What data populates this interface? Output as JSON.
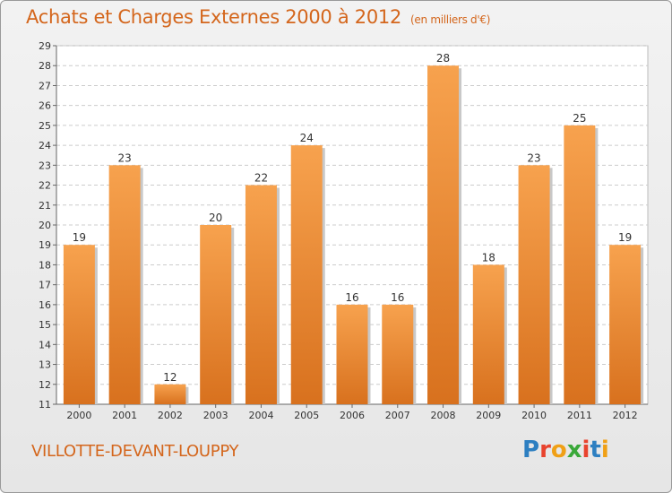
{
  "page": {
    "title": "Achats et Charges Externes 2000 à 2012",
    "unit": "(en milliers d'€)",
    "commune": "VILLOTTE-DEVANT-LOUPPY",
    "logo": "Proxiti",
    "logo_colors": [
      "#2d7fc1",
      "#e8432e",
      "#f0a016",
      "#3aa839",
      "#e8432e",
      "#2d7fc1",
      "#f0a016"
    ]
  },
  "chart_data": {
    "type": "bar",
    "categories": [
      "2000",
      "2001",
      "2002",
      "2003",
      "2004",
      "2005",
      "2006",
      "2007",
      "2008",
      "2009",
      "2010",
      "2011",
      "2012"
    ],
    "values": [
      19,
      23,
      12,
      20,
      22,
      24,
      16,
      16,
      28,
      18,
      23,
      25,
      19
    ],
    "ylim": [
      11,
      29
    ],
    "yticks": [
      11,
      12,
      13,
      14,
      15,
      16,
      17,
      18,
      19,
      20,
      21,
      22,
      23,
      24,
      25,
      26,
      27,
      28,
      29
    ],
    "grid": true,
    "bar_color": "#f0953c"
  }
}
